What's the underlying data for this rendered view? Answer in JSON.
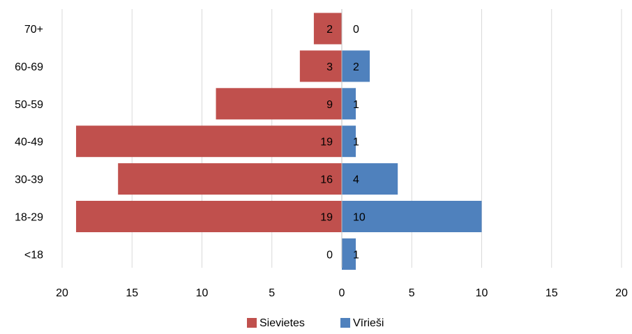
{
  "chart_data": {
    "type": "bar",
    "orientation": "horizontal-diverging",
    "categories": [
      "70+",
      "60-69",
      "50-59",
      "40-49",
      "30-39",
      "18-29",
      "<18"
    ],
    "series": [
      {
        "name": "Sievietes",
        "color": "#c0504d",
        "direction": "left",
        "values": [
          2,
          3,
          9,
          19,
          16,
          19,
          0
        ]
      },
      {
        "name": "Vīrieši",
        "color": "#4f81bd",
        "direction": "right",
        "values": [
          0,
          2,
          1,
          1,
          4,
          10,
          1
        ]
      }
    ],
    "x_ticks": [
      "20",
      "15",
      "10",
      "5",
      "0",
      "5",
      "10",
      "15",
      "20"
    ],
    "xlim": [
      -20,
      20
    ],
    "grid": "vertical",
    "legend": "bottom-center",
    "title": "",
    "xlabel": "",
    "ylabel": ""
  }
}
